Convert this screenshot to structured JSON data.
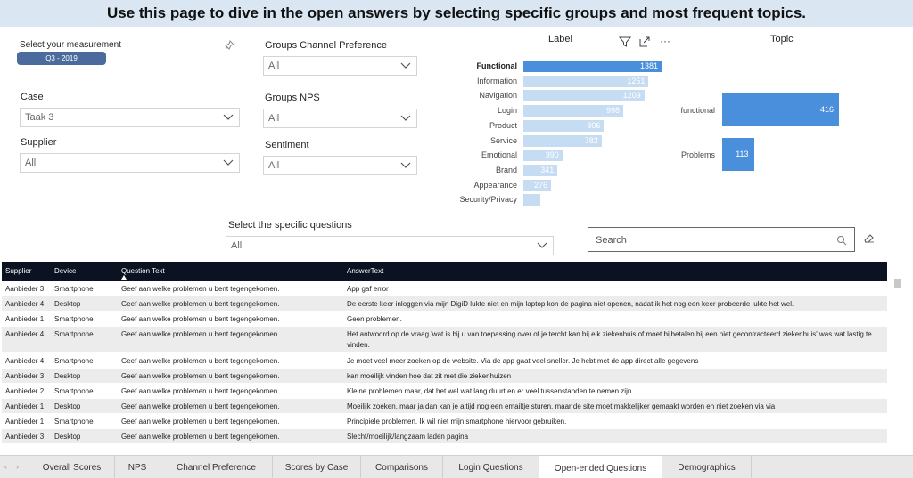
{
  "banner": {
    "text": "Use this page to dive in the open answers by selecting specific groups and most frequent topics."
  },
  "filters": {
    "measurement_label": "Select your measurement",
    "measurement_value": "Q3 - 2019",
    "case_label": "Case",
    "case_value": "Taak 3",
    "supplier_label": "Supplier",
    "supplier_value": "All",
    "channel_label": "Groups Channel Preference",
    "channel_value": "All",
    "nps_label": "Groups NPS",
    "nps_value": "All",
    "sentiment_label": "Sentiment",
    "sentiment_value": "All",
    "questions_label": "Select the specific questions",
    "questions_value": "All"
  },
  "icons": {
    "pin": "pin-icon",
    "chevron": "chevron-down-icon",
    "filter": "filter-icon",
    "focus": "focus-mode-icon",
    "more": "more-options-icon",
    "search": "search-icon",
    "eraser": "eraser-icon"
  },
  "colors": {
    "highlight": "#4a8fdc",
    "bar": "#c6dcf3",
    "header": "#0b1323",
    "row_alt": "#ececec"
  },
  "label_chart_title": "Label",
  "topic_chart_title": "Topic",
  "chart_data": [
    {
      "type": "bar",
      "orientation": "horizontal",
      "title": "Label",
      "categories": [
        "Functional",
        "Information",
        "Navigation",
        "Login",
        "Product",
        "Service",
        "Emotional",
        "Brand",
        "Appearance",
        "Security/Privacy"
      ],
      "values": [
        1381,
        1251,
        1209,
        998,
        806,
        782,
        390,
        341,
        276,
        null
      ],
      "highlighted": "Functional"
    },
    {
      "type": "bar",
      "orientation": "horizontal",
      "title": "Topic",
      "categories": [
        "functional",
        "Problems"
      ],
      "values": [
        416,
        113
      ]
    }
  ],
  "search": {
    "placeholder": "Search"
  },
  "table": {
    "columns": [
      "Supplier",
      "Device",
      "Question Text",
      "AnswerText"
    ],
    "rows": [
      [
        "Aanbieder 3",
        "Smartphone",
        "Geef aan welke problemen u bent tegengekomen.",
        "App gaf error"
      ],
      [
        "Aanbieder 4",
        "Desktop",
        "Geef aan welke problemen u bent tegengekomen.",
        "De eerste keer inloggen via mijn DigiD lukte niet en mijn laptop kon de pagina niet openen, nadat ik het nog een keer probeerde lukte het wel."
      ],
      [
        "Aanbieder 1",
        "Smartphone",
        "Geef aan welke problemen u bent tegengekomen.",
        "Geen problemen."
      ],
      [
        "Aanbieder 4",
        "Smartphone",
        "Geef aan welke problemen u bent tegengekomen.",
        "Het antwoord op de vraag 'wat is bij u van toepassing over of je tercht kan bij elk ziekenhuis of moet bijbetalen bij een niet gecontracteerd ziekenhuis' was wat lastig te vinden."
      ],
      [
        "Aanbieder 4",
        "Smartphone",
        "Geef aan welke problemen u bent tegengekomen.",
        "Je moet veel meer zoeken op de website. Via de app gaat veel sneller. Je hebt met de app direct alle gegevens"
      ],
      [
        "Aanbieder 3",
        "Desktop",
        "Geef aan welke problemen u bent tegengekomen.",
        "kan moeilijk vinden hoe dat zit met die ziekenhuizen"
      ],
      [
        "Aanbieder 2",
        "Smartphone",
        "Geef aan welke problemen u bent tegengekomen.",
        "Kleine problemen maar, dat het wel wat lang duurt en er veel tussenstanden te nemen zijn"
      ],
      [
        "Aanbieder 1",
        "Desktop",
        "Geef aan welke problemen u bent tegengekomen.",
        "Moeilijk zoeken, maar ja dan kan je altijd nog een emailtje sturen, maar de site moet makkelijker gemaakt worden en niet zoeken via via"
      ],
      [
        "Aanbieder 1",
        "Smartphone",
        "Geef aan welke problemen u bent tegengekomen.",
        "Principiele problemen. Ik wil niet mijn smartphone hiervoor gebruiken."
      ],
      [
        "Aanbieder 3",
        "Desktop",
        "Geef aan welke problemen u bent tegengekomen.",
        "Slecht/moeilijk/langzaam laden pagina"
      ]
    ]
  },
  "tabs": {
    "items": [
      "Overall Scores",
      "NPS",
      "Channel Preference",
      "Scores by Case",
      "Comparisons",
      "Login Questions",
      "Open-ended Questions",
      "Demographics"
    ],
    "active": "Open-ended Questions"
  }
}
